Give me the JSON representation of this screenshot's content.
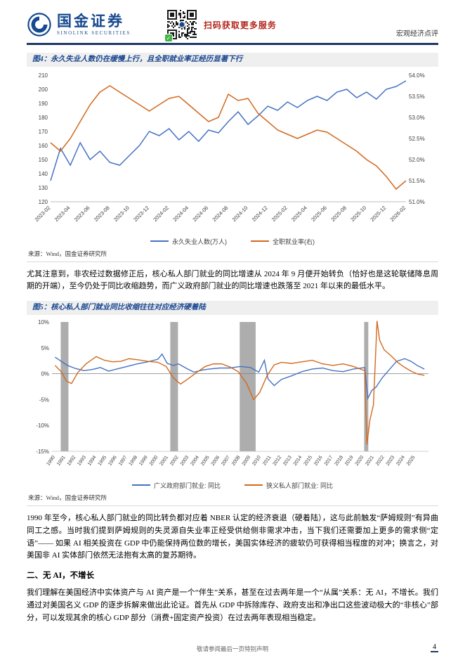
{
  "header": {
    "logo_text": "国金证券",
    "logo_subtext": "SINOLINK SECURITIES",
    "qr_caption": "扫码获取更多服务",
    "report_type": "宏观经济点评"
  },
  "figure4": {
    "title": "图4：永久失业人数仍在缓慢上行，且全职就业率正经历显著下行",
    "source": "来源：Wind，国金证券研究所",
    "chart_data": {
      "type": "line",
      "title": "永久失业人数仍在缓慢上行，且全职就业率正经历显著下行",
      "categories": [
        "2023-02",
        "2023-03",
        "2023-04",
        "2023-05",
        "2023-06",
        "2023-07",
        "2023-08",
        "2023-09",
        "2023-10",
        "2023-11",
        "2023-12",
        "2024-01",
        "2024-02",
        "2024-03",
        "2024-04",
        "2024-05",
        "2024-06",
        "2024-07",
        "2024-08",
        "2024-09",
        "2024-10",
        "2024-11",
        "2024-12",
        "2025-01",
        "2025-02",
        "2025-03",
        "2025-04",
        "2025-05",
        "2025-06",
        "2025-07",
        "2025-08",
        "2025-09",
        "2025-10",
        "2025-11",
        "2025-12",
        "2026-01",
        "2026-02"
      ],
      "series": [
        {
          "name": "永久失业人数(万人)",
          "axis": "left",
          "color": "#4472C4",
          "values": [
            135,
            158,
            146,
            162,
            150,
            156,
            148,
            146,
            153,
            160,
            170,
            167,
            172,
            164,
            170,
            163,
            171,
            169,
            177,
            184,
            175,
            181,
            188,
            185,
            191,
            187,
            192,
            195,
            192,
            198,
            200,
            194,
            198,
            193,
            200,
            202,
            206
          ]
        },
        {
          "name": "全职就业率(右)",
          "axis": "right",
          "color": "#D2691E",
          "values": [
            52.4,
            52.2,
            52.5,
            52.9,
            53.3,
            53.6,
            53.75,
            53.6,
            53.45,
            53.3,
            53.15,
            53.3,
            53.45,
            53.5,
            53.3,
            53.1,
            52.9,
            53.0,
            53.55,
            53.4,
            53.45,
            53.1,
            52.9,
            52.7,
            52.6,
            52.5,
            52.6,
            52.7,
            52.65,
            52.5,
            52.35,
            52.2,
            52.0,
            51.85,
            51.6,
            51.3,
            51.5
          ]
        }
      ],
      "left_axis": {
        "min": 120,
        "max": 210,
        "step": 10
      },
      "right_axis": {
        "min": 51.0,
        "max": 54.0,
        "step": 0.5,
        "suffix": "%"
      },
      "x_label_every": 2,
      "grid": false,
      "legend_position": "bottom"
    }
  },
  "figure5": {
    "title": "图5：核心私人部门就业同比收缩往往对应经济硬着陆",
    "source": "来源：Wind，国金证券研究所",
    "chart_data": {
      "type": "line",
      "title": "核心私人部门就业同比收缩往往对应经济硬着陆",
      "x_min": 1989.7,
      "x_max": 2026.3,
      "y_min": -15,
      "y_max": 10,
      "y_step": 5,
      "y_suffix": "%",
      "x_ticks": [
        1990,
        1991,
        1992,
        1993,
        1994,
        1995,
        1996,
        1997,
        1998,
        1999,
        2000,
        2001,
        2002,
        2003,
        2004,
        2005,
        2006,
        2007,
        2008,
        2009,
        2010,
        2011,
        2012,
        2013,
        2014,
        2015,
        2016,
        2017,
        2018,
        2019,
        2020,
        2021,
        2022,
        2023,
        2024,
        2025
      ],
      "band_color": "#ADADAD",
      "recession_bands": [
        [
          1990.55,
          1991.3
        ],
        [
          2001.2,
          2001.95
        ],
        [
          2007.95,
          2009.5
        ],
        [
          2020.05,
          2020.45
        ]
      ],
      "series": [
        {
          "name": "广义政府部门就业: 同比",
          "color": "#4472C4",
          "points": [
            [
              1990,
              3.2
            ],
            [
              1990.6,
              2.4
            ],
            [
              1991.2,
              1.6
            ],
            [
              1992,
              1.0
            ],
            [
              1992.8,
              0.6
            ],
            [
              1993.6,
              0.8
            ],
            [
              1994.4,
              1.2
            ],
            [
              1995.2,
              0.5
            ],
            [
              1996,
              0.9
            ],
            [
              1997,
              1.4
            ],
            [
              1998,
              1.9
            ],
            [
              1999,
              2.3
            ],
            [
              2000,
              2.8
            ],
            [
              2000.4,
              3.8
            ],
            [
              2000.9,
              2.0
            ],
            [
              2001.5,
              1.6
            ],
            [
              2002,
              1.9
            ],
            [
              2002.8,
              1.0
            ],
            [
              2003.5,
              0.3
            ],
            [
              2004.3,
              0.7
            ],
            [
              2005,
              0.9
            ],
            [
              2006,
              1.1
            ],
            [
              2007,
              1.1
            ],
            [
              2008,
              1.4
            ],
            [
              2009,
              1.2
            ],
            [
              2009.8,
              0.3
            ],
            [
              2010.35,
              2.6
            ],
            [
              2010.7,
              -1.0
            ],
            [
              2011.3,
              -2.3
            ],
            [
              2012,
              -1.1
            ],
            [
              2013,
              -0.4
            ],
            [
              2014,
              0.4
            ],
            [
              2015,
              0.9
            ],
            [
              2016,
              1.1
            ],
            [
              2017,
              0.6
            ],
            [
              2018,
              0.4
            ],
            [
              2019,
              0.9
            ],
            [
              2020.1,
              1.2
            ],
            [
              2020.4,
              -4.8
            ],
            [
              2020.8,
              -3.2
            ],
            [
              2021.2,
              -2.6
            ],
            [
              2021.8,
              -0.8
            ],
            [
              2022.5,
              0.8
            ],
            [
              2023.2,
              2.4
            ],
            [
              2024,
              2.9
            ],
            [
              2024.6,
              2.4
            ],
            [
              2025.2,
              1.6
            ],
            [
              2025.9,
              0.9
            ]
          ]
        },
        {
          "name": "狭义私人部门就业: 同比",
          "color": "#D2691E",
          "points": [
            [
              1990,
              1.6
            ],
            [
              1990.6,
              0.4
            ],
            [
              1991.1,
              -1.4
            ],
            [
              1991.6,
              -1.9
            ],
            [
              1992.2,
              0.2
            ],
            [
              1993,
              1.9
            ],
            [
              1994,
              3.3
            ],
            [
              1994.8,
              2.6
            ],
            [
              1995.6,
              2.3
            ],
            [
              1996.4,
              2.4
            ],
            [
              1997.2,
              2.9
            ],
            [
              1998,
              2.7
            ],
            [
              1999,
              2.4
            ],
            [
              2000,
              2.2
            ],
            [
              2000.8,
              1.4
            ],
            [
              2001.5,
              -0.8
            ],
            [
              2002.2,
              -2.0
            ],
            [
              2003,
              -0.9
            ],
            [
              2003.8,
              0.3
            ],
            [
              2004.6,
              1.4
            ],
            [
              2005.4,
              1.9
            ],
            [
              2006.2,
              1.9
            ],
            [
              2007,
              1.3
            ],
            [
              2007.8,
              0.4
            ],
            [
              2008.6,
              -1.8
            ],
            [
              2009.3,
              -5.0
            ],
            [
              2009.9,
              -3.6
            ],
            [
              2010.6,
              -0.4
            ],
            [
              2011.3,
              1.7
            ],
            [
              2012,
              2.2
            ],
            [
              2013,
              2.0
            ],
            [
              2014,
              2.3
            ],
            [
              2015,
              2.6
            ],
            [
              2016,
              1.9
            ],
            [
              2017,
              1.6
            ],
            [
              2018,
              1.9
            ],
            [
              2019,
              1.4
            ],
            [
              2020.1,
              0.6
            ],
            [
              2020.32,
              -13.7
            ],
            [
              2020.6,
              -9.0
            ],
            [
              2020.95,
              -6.0
            ],
            [
              2021.3,
              10.2
            ],
            [
              2021.55,
              6.5
            ],
            [
              2022,
              4.6
            ],
            [
              2022.7,
              3.4
            ],
            [
              2023.3,
              2.2
            ],
            [
              2024,
              1.2
            ],
            [
              2024.7,
              0.4
            ],
            [
              2025.3,
              -0.1
            ],
            [
              2025.9,
              -0.3
            ]
          ]
        }
      ],
      "legend_position": "bottom"
    }
  },
  "paragraphs": {
    "p1": "尤其注意到，非农经过数据修正后，核心私人部门就业的同比增速从 2024 年 9 月便开始转负（恰好也是这轮联储降息周期的开端），至今仍处于同比收缩趋势，而广义政府部门就业的同比增速也跌落至 2021 年以来的最低水平。",
    "p2": "1990 年至今，核心私人部门就业的同比转负都对应着 NBER 认定的经济衰退（硬着陆），这与此前触发“萨姆规则”有异曲同工之感。当时我们提到萨姆规则的失灵源自失业率正经受供给侧非需求冲击，当下我们还需要加上更多的需求侧“定语”—— 如果 AI 相关投资在 GDP 中仍能保持两位数的增长，美国实体经济的疲软仍可获得相当程度的对冲；换言之，对美国非 AI 实体部门依然无法抱有太高的复苏期待。",
    "p3": "我们理解在美国经济中实体资产与 AI 资产是一个“伴生”关系，甚至在过去两年是一个“从属”关系：无 AI，不增长。我们通过对美国名义 GDP 的逐步拆解来做出此论证。首先从 GDP 中拆除库存、政府支出和净出口这些波动极大的“非核心”部分，可以发现其余的核心 GDP 部分（消费+固定资产投资）在过去两年表现相当稳定。"
  },
  "section2": {
    "heading": "二、无 AI，不增长"
  },
  "footer": {
    "disclaimer": "敬请参阅最后一页特别声明",
    "page_number": "4"
  }
}
